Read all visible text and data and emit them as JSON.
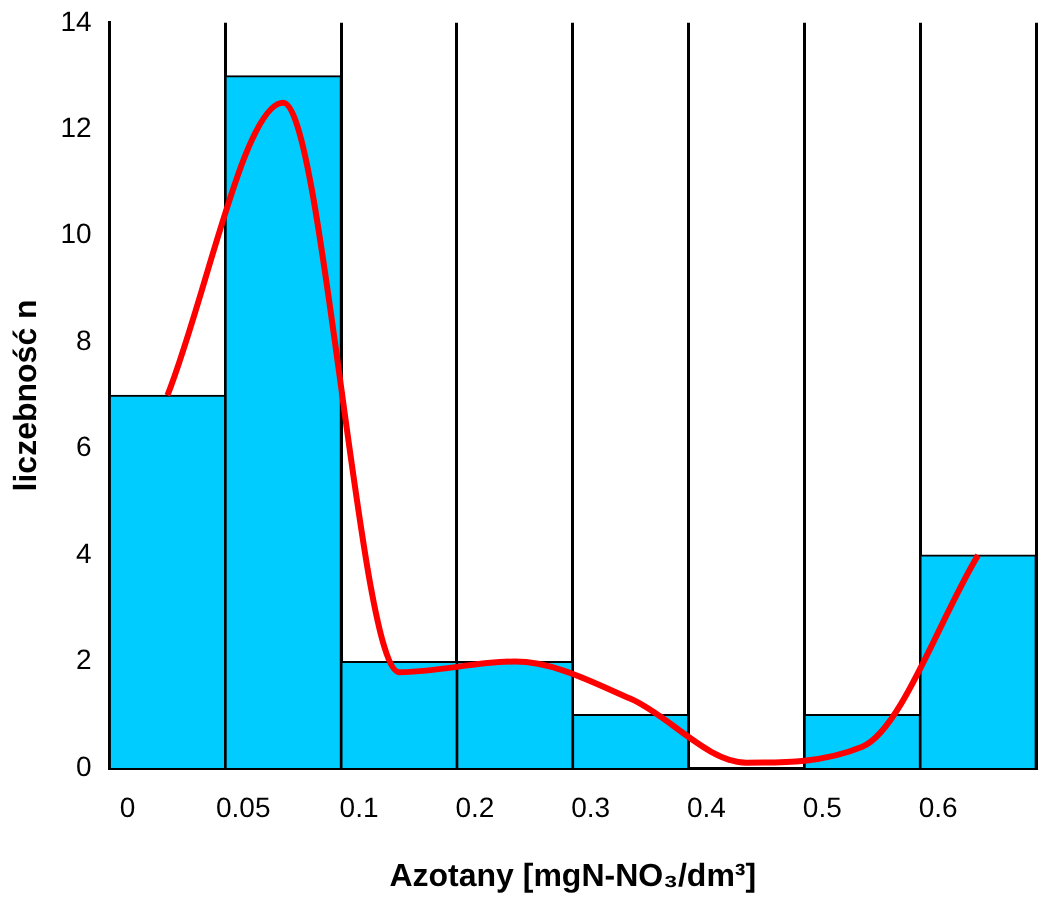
{
  "chart_data": {
    "type": "bar",
    "xlabel": "Azotany [mgN-NO₃/dm³]",
    "ylabel": "liczebność n",
    "categories": [
      "0",
      "0.05",
      "0.1",
      "0.2",
      "0.3",
      "0.4",
      "0.5",
      "0.6"
    ],
    "series": [
      {
        "color": "#00ccff",
        "values": [
          7,
          13,
          2,
          2,
          1,
          0,
          1,
          4
        ]
      },
      {
        "type": "line",
        "color": "#ff0000",
        "values": [
          7,
          12.5,
          1.8,
          2,
          1.3,
          0.1,
          0.4,
          4
        ]
      }
    ],
    "ylim": [
      0,
      14
    ],
    "yticks": [
      0,
      2,
      4,
      6,
      8,
      10,
      12,
      14
    ],
    "grid": "x",
    "legend": false,
    "marker": "none",
    "line_style": "solid"
  }
}
